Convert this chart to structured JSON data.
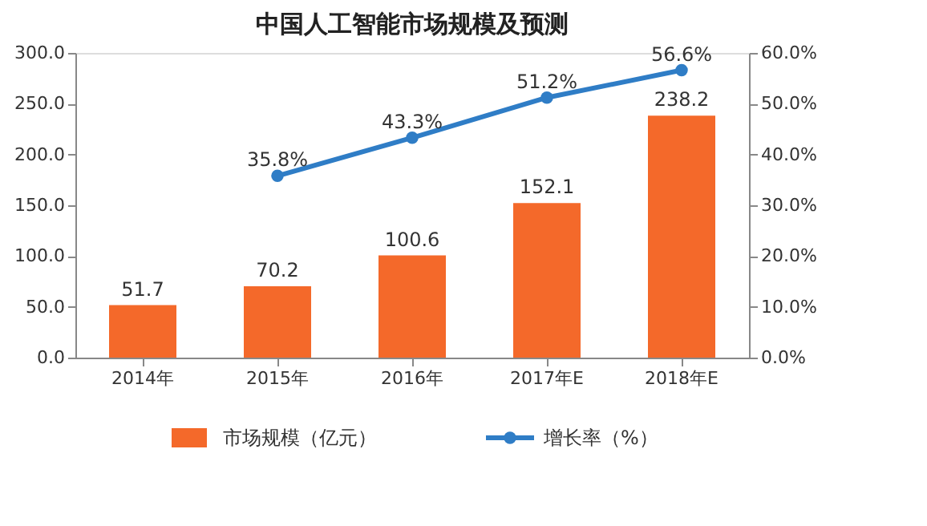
{
  "chart_data": {
    "type": "bar",
    "title": "中国人工智能市场规模及预测",
    "categories": [
      "2014年",
      "2015年",
      "2016年",
      "2017年E",
      "2018年E"
    ],
    "series": [
      {
        "name": "市场规模（亿元）",
        "color": "#f4692a",
        "values": [
          51.7,
          70.2,
          100.6,
          152.1,
          238.2
        ]
      },
      {
        "name": "增长率（%）",
        "type": "line",
        "axis": "y2",
        "color": "#2f7dc6",
        "marker": "circle",
        "values": [
          null,
          35.8,
          43.3,
          51.2,
          56.6
        ],
        "value_labels": [
          null,
          "35.8%",
          "43.3%",
          "51.2%",
          "56.6%"
        ]
      }
    ],
    "data_labels": true,
    "ylim": [
      0,
      300
    ],
    "yticks": [
      {
        "value": 0,
        "label": "0.0"
      },
      {
        "value": 50,
        "label": "50.0"
      },
      {
        "value": 100,
        "label": "100.0"
      },
      {
        "value": 150,
        "label": "150.0"
      },
      {
        "value": 200,
        "label": "200.0"
      },
      {
        "value": 250,
        "label": "250.0"
      },
      {
        "value": 300,
        "label": "300.0"
      }
    ],
    "y2lim": [
      0,
      60
    ],
    "y2ticks": [
      {
        "value": 0,
        "label": "0.0%"
      },
      {
        "value": 10,
        "label": "10.0%"
      },
      {
        "value": 20,
        "label": "20.0%"
      },
      {
        "value": 30,
        "label": "30.0%"
      },
      {
        "value": 40,
        "label": "40.0%"
      },
      {
        "value": 50,
        "label": "50.0%"
      },
      {
        "value": 60,
        "label": "60.0%"
      }
    ],
    "grid": false,
    "legend": "bottom"
  }
}
